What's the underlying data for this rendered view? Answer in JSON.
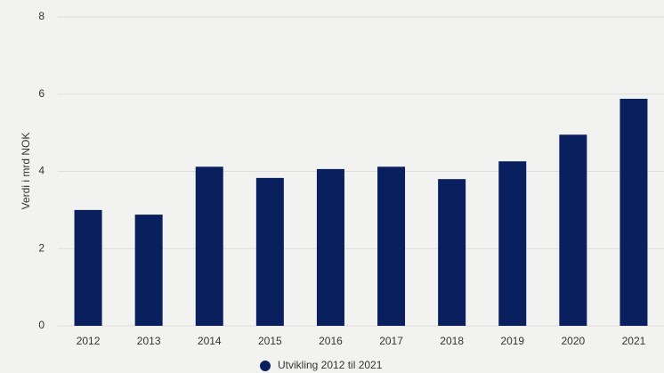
{
  "chart_data": {
    "type": "bar",
    "y_label": "Verdi i mrd NOK",
    "categories": [
      "2012",
      "2013",
      "2014",
      "2015",
      "2016",
      "2017",
      "2018",
      "2019",
      "2020",
      "2021"
    ],
    "series": [
      {
        "name": "Utvikling 2012 til 2021",
        "color": "#0a1f5e",
        "values": [
          3.0,
          2.88,
          4.12,
          3.83,
          4.06,
          4.12,
          3.8,
          4.26,
          4.95,
          5.88
        ]
      }
    ],
    "ylim": [
      0,
      8
    ],
    "yticks": [
      0,
      2,
      4,
      6,
      8
    ],
    "grid": true,
    "legend": "bottom"
  }
}
